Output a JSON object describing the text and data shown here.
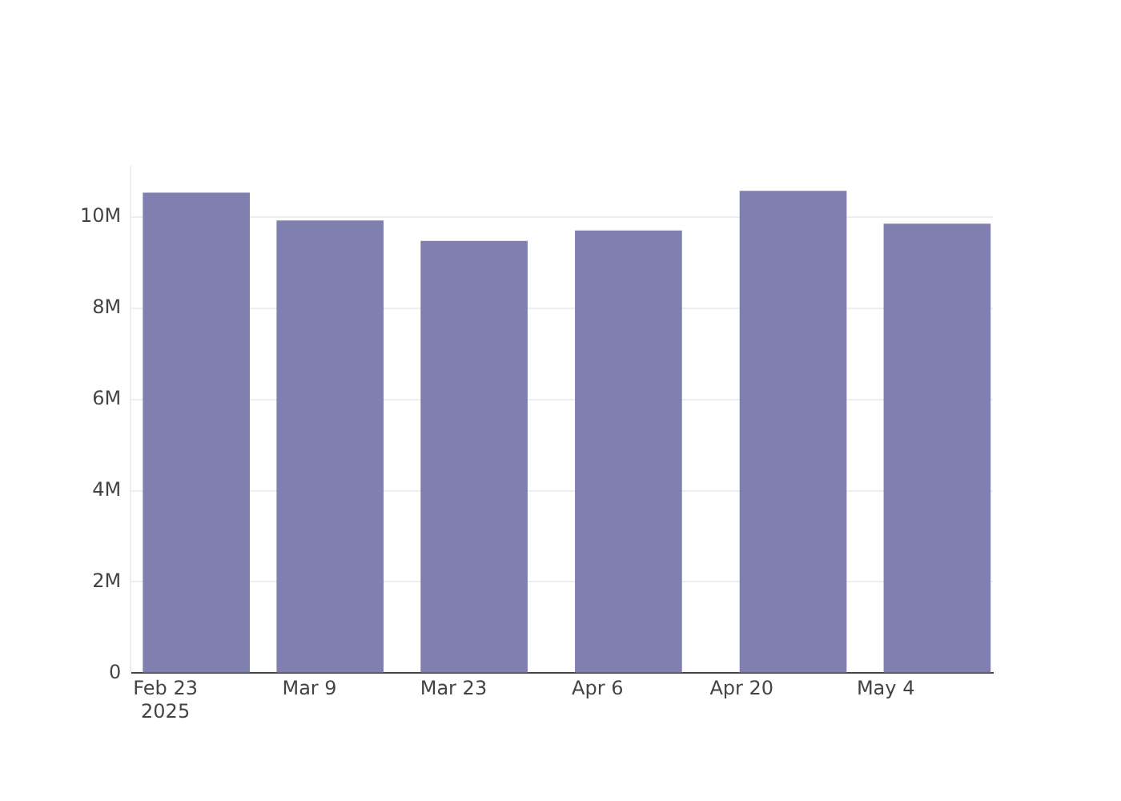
{
  "chart_data": {
    "type": "bar",
    "x": [
      "2025-02-26",
      "2025-03-11",
      "2025-03-25",
      "2025-04-09",
      "2025-04-25",
      "2025-05-09"
    ],
    "series": [
      {
        "color": "#7f7fb0",
        "values": [
          10530000,
          9920000,
          9470000,
          9700000,
          10570000,
          9850000
        ]
      }
    ],
    "xlim": [
      "2025-02-19T15:00",
      "2025-05-14T10:00"
    ],
    "xticks": [
      {
        "value": "2025-02-23",
        "label": "Feb 23\n2025"
      },
      {
        "value": "2025-03-09",
        "label": "Mar 9"
      },
      {
        "value": "2025-03-23",
        "label": "Mar 23"
      },
      {
        "value": "2025-04-06",
        "label": "Apr 6"
      },
      {
        "value": "2025-04-20",
        "label": "Apr 20"
      },
      {
        "value": "2025-05-04",
        "label": "May 4"
      }
    ],
    "ylim": [
      0,
      11100000
    ],
    "yticks": [
      0,
      {
        "value": 2000000,
        "label": "2M"
      },
      {
        "value": 4000000,
        "label": "4M"
      },
      {
        "value": 6000000,
        "label": "6M"
      },
      {
        "value": 8000000,
        "label": "8M"
      },
      {
        "value": 10000000,
        "label": "10M"
      }
    ],
    "grid": "y",
    "legend": false
  }
}
